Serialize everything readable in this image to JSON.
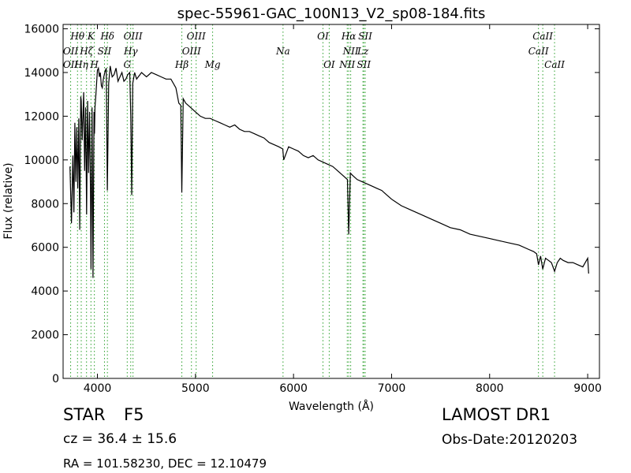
{
  "chart_data": {
    "type": "line",
    "title": "spec-55961-GAC_100N13_V2_sp08-184.fits",
    "xlabel": "Wavelength (Å)",
    "ylabel": "Flux (relative)",
    "xlim": [
      3650,
      9120
    ],
    "ylim": [
      0,
      16200
    ],
    "xticks": [
      4000,
      5000,
      6000,
      7000,
      8000,
      9000
    ],
    "yticks": [
      0,
      2000,
      4000,
      6000,
      8000,
      10000,
      12000,
      14000,
      16000
    ],
    "grid": false,
    "line_color": "#000000",
    "marker_color": "#2ca02c",
    "series": [
      {
        "x": [
          3720,
          3735,
          3750,
          3760,
          3770,
          3780,
          3790,
          3800,
          3810,
          3820,
          3830,
          3835,
          3845,
          3860,
          3870,
          3880,
          3890,
          3900,
          3910,
          3920,
          3930,
          3935,
          3945,
          3955,
          3965,
          3970,
          3975,
          3985,
          4000,
          4010,
          4020,
          4030,
          4040,
          4050,
          4060,
          4075,
          4090,
          4101,
          4115,
          4130,
          4150,
          4170,
          4190,
          4210,
          4230,
          4250,
          4270,
          4290,
          4310,
          4330,
          4340,
          4350,
          4360,
          4380,
          4400,
          4450,
          4500,
          4550,
          4600,
          4650,
          4700,
          4750,
          4800,
          4830,
          4850,
          4861,
          4875,
          4900,
          4950,
          5000,
          5050,
          5100,
          5150,
          5200,
          5250,
          5300,
          5350,
          5400,
          5450,
          5500,
          5550,
          5600,
          5650,
          5700,
          5750,
          5800,
          5850,
          5890,
          5900,
          5950,
          6000,
          6050,
          6100,
          6150,
          6200,
          6250,
          6300,
          6350,
          6400,
          6450,
          6500,
          6550,
          6563,
          6580,
          6600,
          6650,
          6700,
          6750,
          6800,
          6850,
          6900,
          6950,
          7000,
          7100,
          7200,
          7300,
          7400,
          7500,
          7600,
          7700,
          7800,
          7900,
          8000,
          8100,
          8200,
          8300,
          8400,
          8450,
          8480,
          8498,
          8520,
          8542,
          8570,
          8600,
          8630,
          8662,
          8690,
          8720,
          8750,
          8800,
          8850,
          8900,
          8950,
          9000,
          9010
        ],
        "y": [
          9700,
          7100,
          10200,
          7600,
          11700,
          9000,
          11500,
          8700,
          11900,
          6800,
          12900,
          12700,
          10900,
          13100,
          9500,
          12400,
          7500,
          12700,
          9400,
          12200,
          8200,
          5000,
          12400,
          4600,
          12200,
          11200,
          12400,
          13000,
          14100,
          14200,
          13800,
          14000,
          13400,
          13300,
          13700,
          14000,
          14200,
          8600,
          13500,
          14300,
          13800,
          13900,
          14200,
          13600,
          13800,
          14000,
          13600,
          13700,
          13900,
          14000,
          12000,
          8400,
          13500,
          14000,
          13700,
          14000,
          13800,
          14000,
          13900,
          13800,
          13700,
          13700,
          13300,
          12600,
          12500,
          8500,
          12800,
          12600,
          12400,
          12200,
          12000,
          11900,
          11900,
          11800,
          11700,
          11600,
          11500,
          11600,
          11400,
          11300,
          11300,
          11200,
          11100,
          11000,
          10800,
          10700,
          10600,
          10500,
          10000,
          10600,
          10500,
          10400,
          10200,
          10100,
          10200,
          10000,
          9900,
          9800,
          9700,
          9500,
          9300,
          9100,
          6600,
          9400,
          9300,
          9100,
          9000,
          8900,
          8800,
          8700,
          8600,
          8400,
          8200,
          7900,
          7700,
          7500,
          7300,
          7100,
          6900,
          6800,
          6600,
          6500,
          6400,
          6300,
          6200,
          6100,
          5900,
          5800,
          5700,
          5200,
          5600,
          5000,
          5500,
          5400,
          5300,
          4900,
          5300,
          5500,
          5400,
          5300,
          5300,
          5200,
          5100,
          5500,
          4800
        ]
      }
    ],
    "lines_top": [
      {
        "label": "Hθ",
        "x": 3797
      },
      {
        "label": "K",
        "x": 3934
      },
      {
        "label": "Hδ",
        "x": 4102
      },
      {
        "label": "OIII",
        "x": 4363
      },
      {
        "label": "OIII",
        "x": 5007
      },
      {
        "label": "OI",
        "x": 6300
      },
      {
        "label": "Hα",
        "x": 6563
      },
      {
        "label": "SII",
        "x": 6731
      },
      {
        "label": "CaII",
        "x": 8542
      }
    ],
    "lines_upper": [
      {
        "label": "OII",
        "x": 3727
      },
      {
        "label": "Hζ",
        "x": 3889
      },
      {
        "label": "SII",
        "x": 4072
      },
      {
        "label": "Hγ",
        "x": 4340
      },
      {
        "label": "OIII",
        "x": 4959
      },
      {
        "label": "Na",
        "x": 5893
      },
      {
        "label": "NII",
        "x": 6583
      },
      {
        "label": "Lz",
        "x": 6708
      },
      {
        "label": "CaII",
        "x": 8498
      }
    ],
    "lines_lower": [
      {
        "label": "OII",
        "x": 3727
      },
      {
        "label": "Hη",
        "x": 3835
      },
      {
        "label": "H",
        "x": 3969
      },
      {
        "label": "G",
        "x": 4304
      },
      {
        "label": "Hβ",
        "x": 4861
      },
      {
        "label": "Mg",
        "x": 5175
      },
      {
        "label": "OI",
        "x": 6364
      },
      {
        "label": "NII",
        "x": 6548
      },
      {
        "label": "SII",
        "x": 6717
      },
      {
        "label": "CaII",
        "x": 8662
      }
    ]
  },
  "info": {
    "object_class": "STAR",
    "subclass": "F5",
    "cz": "cz = 36.4 ± 15.6",
    "coords": "RA = 101.58230, DEC = 12.10479",
    "survey": "LAMOST DR1",
    "obs_date": "Obs-Date:20120203"
  }
}
